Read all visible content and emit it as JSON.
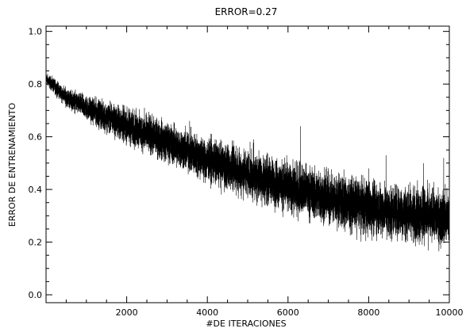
{
  "chart_data": {
    "type": "line",
    "title": "ERROR=0.27",
    "xlabel": "#DE ITERACIONES",
    "ylabel": "ERROR DE ENTRENAMIENTO",
    "xlim": [
      0,
      10000
    ],
    "ylim": [
      -0.03,
      1.02
    ],
    "xticks": [
      2000,
      4000,
      6000,
      8000,
      10000
    ],
    "xtick_labels": [
      "2000",
      "4000",
      "6000",
      "8000",
      "10000"
    ],
    "yticks": [
      0.0,
      0.2,
      0.4,
      0.6,
      0.8,
      1.0
    ],
    "ytick_labels": [
      "0.0",
      "0.2",
      "0.4",
      "0.6",
      "0.8",
      "1.0"
    ],
    "grid": false,
    "series": [
      {
        "color": "#000000",
        "trend": {
          "x": [
            0,
            500,
            1000,
            2000,
            3000,
            4000,
            5000,
            6000,
            7000,
            8000,
            9000,
            10000
          ],
          "y": [
            0.82,
            0.75,
            0.71,
            0.64,
            0.58,
            0.51,
            0.46,
            0.41,
            0.37,
            0.33,
            0.31,
            0.29
          ]
        },
        "noise_band": {
          "x": [
            0,
            2000,
            5000,
            8000,
            10000
          ],
          "half_width": [
            0.02,
            0.06,
            0.08,
            0.09,
            0.09
          ]
        },
        "spikes": [
          {
            "x": 2440,
            "y": 0.71
          },
          {
            "x": 3560,
            "y": 0.66
          },
          {
            "x": 5150,
            "y": 0.59
          },
          {
            "x": 6310,
            "y": 0.64
          },
          {
            "x": 8000,
            "y": 0.48
          },
          {
            "x": 8430,
            "y": 0.53
          },
          {
            "x": 9360,
            "y": 0.5
          },
          {
            "x": 9860,
            "y": 0.52
          }
        ],
        "sample_count": 10000
      }
    ]
  }
}
